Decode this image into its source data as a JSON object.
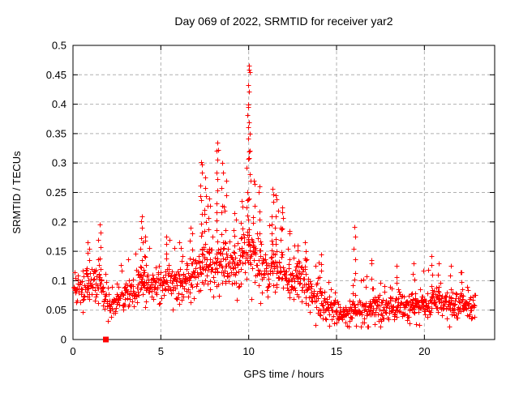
{
  "window": {
    "background": "#ffffff"
  },
  "chart_data": {
    "type": "scatter",
    "title": "Day 069 of 2022, SRMTID for receiver yar2",
    "xlabel": "GPS time / hours",
    "ylabel": "SRMTID / TECUs",
    "xlim": [
      0,
      24
    ],
    "ylim": [
      0,
      0.5
    ],
    "xtick_values": [
      0,
      5,
      10,
      15,
      20
    ],
    "xtick_labels": [
      "0",
      "5",
      "10",
      "15",
      "20"
    ],
    "ytick_values": [
      0,
      0.05,
      0.1,
      0.15,
      0.2,
      0.25,
      0.3,
      0.35,
      0.4,
      0.45,
      0.5
    ],
    "ytick_labels": [
      "0",
      "0.05",
      "0.1",
      "0.15",
      "0.2",
      "0.25",
      "0.3",
      "0.35",
      "0.4",
      "0.45",
      "0.5"
    ],
    "grid": {
      "show": true,
      "color": "#b0b0b0",
      "dash": "4,3"
    },
    "axis_color": "#000000",
    "text_color": "#000000",
    "legend": null,
    "series": [
      {
        "name": "SRMTID",
        "marker": "plus",
        "color": "#ff0000",
        "marker_size": 7
      }
    ],
    "special_points": [
      {
        "x": 1.87,
        "y": 0,
        "marker": "filled-square",
        "color": "#ff0000",
        "size": 7
      }
    ],
    "max_point": {
      "x": 10.0,
      "y": 0.466
    },
    "peak_points": [
      [
        10.0,
        0.466
      ],
      [
        10.0,
        0.458
      ],
      [
        9.98,
        0.432
      ],
      [
        10.02,
        0.421
      ],
      [
        8.2,
        0.335
      ],
      [
        8.25,
        0.322
      ],
      [
        7.3,
        0.302
      ],
      [
        8.5,
        0.3
      ],
      [
        11.35,
        0.256
      ],
      [
        10.6,
        0.26
      ],
      [
        16.0,
        0.192
      ],
      [
        3.9,
        0.21
      ],
      [
        1.5,
        0.196
      ]
    ],
    "generator": {
      "seed": 69,
      "n_base_points": 1250,
      "t_start": 0.03,
      "t_end": 22.9,
      "y_floor": 0.022,
      "median": [
        [
          0,
          0.085
        ],
        [
          0.8,
          0.095
        ],
        [
          1.5,
          0.085
        ],
        [
          2.2,
          0.065
        ],
        [
          3,
          0.072
        ],
        [
          3.9,
          0.095
        ],
        [
          4.5,
          0.085
        ],
        [
          5.2,
          0.1
        ],
        [
          6,
          0.095
        ],
        [
          6.8,
          0.105
        ],
        [
          7.4,
          0.125
        ],
        [
          8,
          0.12
        ],
        [
          8.6,
          0.125
        ],
        [
          9.2,
          0.13
        ],
        [
          9.8,
          0.145
        ],
        [
          10.2,
          0.145
        ],
        [
          10.8,
          0.12
        ],
        [
          11.4,
          0.125
        ],
        [
          12,
          0.11
        ],
        [
          12.6,
          0.105
        ],
        [
          13.2,
          0.09
        ],
        [
          13.8,
          0.07
        ],
        [
          14.4,
          0.055
        ],
        [
          15,
          0.047
        ],
        [
          15.6,
          0.042
        ],
        [
          16.1,
          0.05
        ],
        [
          16.6,
          0.048
        ],
        [
          17.1,
          0.06
        ],
        [
          17.6,
          0.052
        ],
        [
          18.1,
          0.058
        ],
        [
          18.6,
          0.06
        ],
        [
          19.1,
          0.055
        ],
        [
          19.6,
          0.062
        ],
        [
          20.1,
          0.058
        ],
        [
          20.6,
          0.068
        ],
        [
          21.1,
          0.06
        ],
        [
          21.6,
          0.058
        ],
        [
          22.1,
          0.062
        ],
        [
          22.9,
          0.058
        ]
      ],
      "spread": [
        [
          0,
          0.03
        ],
        [
          1,
          0.035
        ],
        [
          2,
          0.028
        ],
        [
          3,
          0.03
        ],
        [
          4,
          0.035
        ],
        [
          5,
          0.038
        ],
        [
          6,
          0.04
        ],
        [
          7,
          0.045
        ],
        [
          8,
          0.05
        ],
        [
          9,
          0.052
        ],
        [
          10,
          0.055
        ],
        [
          11,
          0.05
        ],
        [
          12,
          0.045
        ],
        [
          13,
          0.04
        ],
        [
          14,
          0.03
        ],
        [
          15,
          0.022
        ],
        [
          16,
          0.025
        ],
        [
          17,
          0.028
        ],
        [
          18,
          0.026
        ],
        [
          19,
          0.028
        ],
        [
          20,
          0.028
        ],
        [
          21,
          0.026
        ],
        [
          22,
          0.026
        ],
        [
          22.9,
          0.025
        ]
      ],
      "spikes": [
        [
          0.85,
          0.165,
          6
        ],
        [
          1.5,
          0.196,
          7
        ],
        [
          3.9,
          0.21,
          9
        ],
        [
          4.1,
          0.175,
          5
        ],
        [
          5.3,
          0.175,
          5
        ],
        [
          6.15,
          0.155,
          4
        ],
        [
          6.7,
          0.19,
          6
        ],
        [
          7.3,
          0.302,
          12
        ],
        [
          7.5,
          0.275,
          8
        ],
        [
          7.75,
          0.24,
          5
        ],
        [
          8.2,
          0.335,
          12
        ],
        [
          8.5,
          0.3,
          7
        ],
        [
          8.7,
          0.27,
          5
        ],
        [
          9.2,
          0.215,
          5
        ],
        [
          9.6,
          0.235,
          5
        ],
        [
          9.95,
          0.4,
          10
        ],
        [
          10.0,
          0.466,
          8
        ],
        [
          10.05,
          0.35,
          6
        ],
        [
          10.3,
          0.27,
          6
        ],
        [
          10.6,
          0.26,
          6
        ],
        [
          11.35,
          0.256,
          8
        ],
        [
          11.55,
          0.245,
          6
        ],
        [
          11.9,
          0.225,
          5
        ],
        [
          12.3,
          0.185,
          4
        ],
        [
          12.8,
          0.16,
          4
        ],
        [
          13.2,
          0.165,
          4
        ],
        [
          14.1,
          0.145,
          3
        ],
        [
          16.0,
          0.192,
          7
        ],
        [
          17.0,
          0.135,
          4
        ],
        [
          18.4,
          0.125,
          3
        ],
        [
          19.4,
          0.13,
          3
        ],
        [
          20.4,
          0.142,
          4
        ],
        [
          20.8,
          0.13,
          3
        ],
        [
          21.5,
          0.125,
          3
        ],
        [
          22.1,
          0.115,
          3
        ]
      ]
    }
  }
}
